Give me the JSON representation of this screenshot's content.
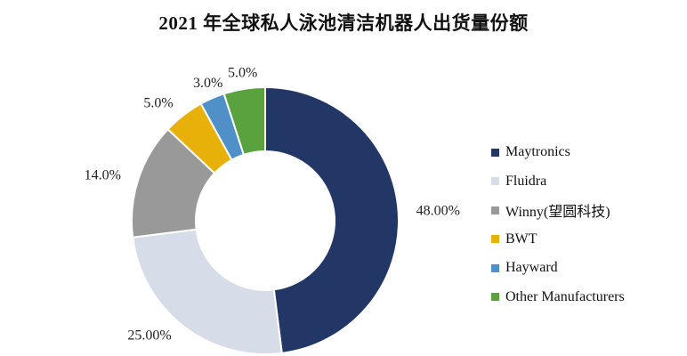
{
  "chart_data": {
    "type": "pie",
    "title": "2021 年全球私人泳池清洁机器人出货量份额",
    "legend": "right",
    "series": [
      {
        "name": "Maytronics",
        "value": 48.0,
        "label": "48.00%",
        "color": "#223766"
      },
      {
        "name": "Fluidra",
        "value": 25.0,
        "label": "25.00%",
        "color": "#d6dce8"
      },
      {
        "name": "Winny(望圆科技)",
        "value": 14.0,
        "label": "14.0%",
        "color": "#999999"
      },
      {
        "name": "BWT",
        "value": 5.0,
        "label": "5.0%",
        "color": "#e7b10a"
      },
      {
        "name": "Hayward",
        "value": 3.0,
        "label": "3.0%",
        "color": "#5090c8"
      },
      {
        "name": "Other Manufacturers",
        "value": 5.0,
        "label": "5.0%",
        "color": "#5aa23d"
      }
    ]
  }
}
